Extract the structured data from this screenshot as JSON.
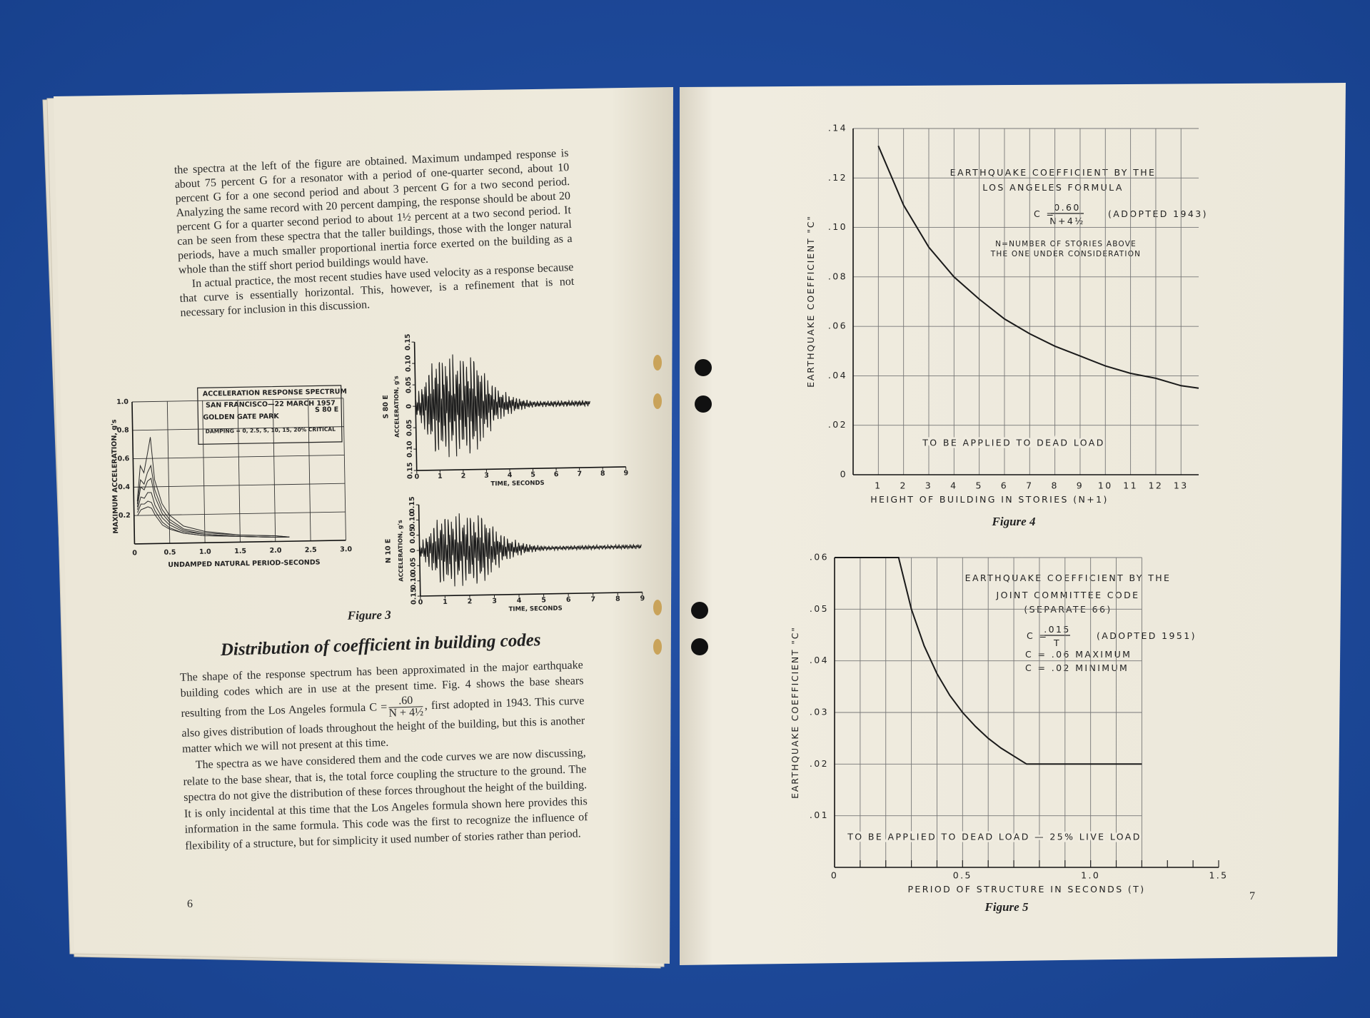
{
  "left_page": {
    "upper_text": [
      "the spectra at the left of the figure are obtained. Maximum undamped response is about 75 percent G for a resonator with a period of one-quarter second, about 10 percent G for a one second period and about 3 percent G for a two second period. Analyzing the same record with 20 percent damping, the response should be about 20 percent G for a quarter second period to about 1½ percent at a two second period. It can be seen from these spectra that the taller buildings, those with the longer natural periods, have a much smaller proportional inertia force exerted on the building as a whole than the stiff short period buildings would have.",
      "In actual practice, the most recent studies have used velocity as a response because that curve is essentially horizontal. This, however, is a refinement that is not necessary for inclusion in this discussion."
    ],
    "figure_3": {
      "spectrum": {
        "type": "line",
        "title_lines": [
          "ACCELERATION RESPONSE SPECTRUM",
          "SAN FRANCISCO—22 MARCH 1957",
          "GOLDEN GATE PARK"
        ],
        "direction": "S 80 E",
        "damping_note": "DAMPING = 0, 2.5, 5, 10, 15, 20% CRITICAL",
        "y_label": "MAXIMUM ACCELERATION, g's",
        "x_label": "UNDAMPED NATURAL PERIOD-SECONDS",
        "x": [
          0.05,
          0.1,
          0.15,
          0.2,
          0.25,
          0.3,
          0.4,
          0.5,
          0.7,
          1.0,
          1.5,
          2.0,
          2.2
        ],
        "series": [
          {
            "values": [
              0.3,
              0.55,
              0.5,
              0.62,
              0.75,
              0.45,
              0.28,
              0.2,
              0.12,
              0.08,
              0.05,
              0.04,
              0.03
            ]
          },
          {
            "values": [
              0.28,
              0.45,
              0.42,
              0.5,
              0.55,
              0.38,
              0.24,
              0.17,
              0.1,
              0.07,
              0.05,
              0.04,
              0.03
            ]
          },
          {
            "values": [
              0.26,
              0.4,
              0.38,
              0.44,
              0.46,
              0.33,
              0.21,
              0.15,
              0.09,
              0.06,
              0.04,
              0.03,
              0.03
            ]
          },
          {
            "values": [
              0.24,
              0.33,
              0.32,
              0.36,
              0.36,
              0.27,
              0.18,
              0.13,
              0.08,
              0.06,
              0.04,
              0.03,
              0.03
            ]
          },
          {
            "values": [
              0.22,
              0.28,
              0.28,
              0.3,
              0.29,
              0.23,
              0.15,
              0.11,
              0.07,
              0.05,
              0.04,
              0.03,
              0.03
            ]
          },
          {
            "values": [
              0.2,
              0.24,
              0.25,
              0.26,
              0.25,
              0.2,
              0.13,
              0.1,
              0.07,
              0.05,
              0.04,
              0.03,
              0.03
            ]
          }
        ],
        "xlim": [
          0,
          3
        ],
        "ylim": [
          0,
          1
        ],
        "xticks": [
          0,
          0.5,
          {
            "value": 1,
            "label": "1.0"
          },
          1.5,
          {
            "value": 2,
            "label": "2.0"
          },
          2.5,
          {
            "value": 3,
            "label": "3.0"
          }
        ],
        "yticks": [
          0.2,
          0.4,
          0.6,
          0.8,
          {
            "value": 1,
            "label": "1.0"
          }
        ],
        "grid": true,
        "color": "#2b2b2b"
      },
      "seismograms": [
        {
          "type": "line",
          "direction": "S 80 E",
          "y_label": "ACCELERATION, g's",
          "x_label": "TIME, SECONDS",
          "trace_end": 7.5,
          "xlim": [
            0,
            9
          ],
          "ylim": [
            -0.15,
            0.15
          ],
          "xticks": [
            0,
            1,
            2,
            3,
            4,
            5,
            6,
            7,
            8,
            9
          ],
          "yticks": [
            {
              "value": -0.15,
              "label": "0.15"
            },
            {
              "value": -0.1,
              "label": "0.10"
            },
            {
              "value": -0.05,
              "label": "0.05"
            },
            0,
            0.05,
            {
              "value": 0.1,
              "label": "0.10"
            },
            0.15
          ],
          "grid": false,
          "color": "#1e1e1e"
        },
        {
          "type": "line",
          "direction": "N 10 E",
          "y_label": "ACCELERATION, g's",
          "x_label": "TIME, SECONDS",
          "trace_end": 9,
          "xlim": [
            0,
            9
          ],
          "ylim": [
            -0.15,
            0.15
          ],
          "xticks": [
            0,
            1,
            2,
            3,
            4,
            5,
            6,
            7,
            8,
            9
          ],
          "yticks": [
            {
              "value": -0.15,
              "label": "0.15"
            },
            {
              "value": -0.1,
              "label": "0.10"
            },
            {
              "value": -0.05,
              "label": "0.05"
            },
            0,
            0.05,
            {
              "value": 0.1,
              "label": "0.10"
            },
            0.15
          ],
          "grid": false,
          "color": "#1e1e1e"
        }
      ],
      "caption": "Figure 3"
    },
    "heading": "Distribution of coefficient in building codes",
    "body": [
      {
        "before": "The shape of the response spectrum has been approximated in the major earthquake building codes which are in use at the present time. Fig. 4 shows the base shears resulting from the Los Angeles formula C =",
        "numerator": ".60",
        "denominator": "N + 4½",
        "after": ", first adopted in 1943. This curve also gives distribution of loads throughout the height of the building, but this is another matter which we will not present at this time."
      },
      "The spectra as we have considered them and the code curves we are now discussing, relate to the base shear, that is, the total force coupling the structure to the ground. The spectra do not give the distribution of these forces throughout the height of the building. It is only incidental at this time that the Los Angeles formula shown here provides this information in the same formula. This code was the first to recognize the influence of flexibility of a structure, but for simplicity it used number of stories rather than period."
    ],
    "page_number": "6"
  },
  "right_page": {
    "figure_4": {
      "type": "line",
      "title_lines": [
        "EARTHQUAKE COEFFICIENT BY THE",
        "LOS ANGELES FORMULA"
      ],
      "formula": {
        "lhs": "C =",
        "numerator": "0.60",
        "denominator": "N+4½",
        "note": "(ADOPTED 1943)"
      },
      "definition_lines": [
        "N=NUMBER OF STORIES ABOVE",
        "THE ONE UNDER CONSIDERATION"
      ],
      "annotation": "TO BE APPLIED TO DEAD LOAD",
      "y_label": "EARTHQUAKE COEFFICIENT \"C\"",
      "x_label": "HEIGHT OF BUILDING IN STORIES (N+1)",
      "caption": "Figure 4",
      "x": [
        1,
        2,
        3,
        4,
        5,
        6,
        7,
        8,
        9,
        10,
        11,
        12,
        13,
        13.7
      ],
      "values": [
        0.133,
        0.109,
        0.092,
        0.08,
        0.071,
        0.063,
        0.057,
        0.052,
        0.048,
        0.044,
        0.041,
        0.039,
        0.036,
        0.035
      ],
      "xlim": [
        0,
        13.7
      ],
      "ylim": [
        0,
        0.14
      ],
      "xticks": [
        1,
        2,
        3,
        4,
        5,
        6,
        7,
        8,
        9,
        10,
        11,
        12,
        13
      ],
      "yticks": [
        0,
        {
          "value": 0.02,
          "label": ".02"
        },
        {
          "value": 0.04,
          "label": ".04"
        },
        {
          "value": 0.06,
          "label": ".06"
        },
        {
          "value": 0.08,
          "label": ".08"
        },
        {
          "value": 0.1,
          "label": ".10"
        },
        {
          "value": 0.12,
          "label": ".12"
        },
        {
          "value": 0.14,
          "label": ".14"
        }
      ],
      "grid": true,
      "color": "#1a1a1a"
    },
    "figure_5": {
      "type": "line",
      "title_lines": [
        "EARTHQUAKE COEFFICIENT BY THE",
        "JOINT COMMITTEE CODE",
        "(SEPARATE 66)"
      ],
      "formula": {
        "lhs": "C =",
        "numerator": ".015",
        "denominator": "T",
        "note": "(ADOPTED 1951)"
      },
      "definition_lines": [
        "C = .06 MAXIMUM",
        "C = .02 MINIMUM"
      ],
      "annotation": "TO BE APPLIED TO DEAD LOAD — 25% LIVE LOAD",
      "y_label": "EARTHQUAKE COEFFICIENT \"C\"",
      "x_label": "PERIOD OF STRUCTURE IN SECONDS (T)",
      "caption": "Figure 5",
      "x": [
        0,
        0.25,
        0.3,
        0.35,
        0.4,
        0.45,
        0.5,
        0.55,
        0.6,
        0.65,
        0.75,
        1.2
      ],
      "values": [
        0.06,
        0.06,
        0.05,
        0.0429,
        0.0375,
        0.0333,
        0.03,
        0.0273,
        0.025,
        0.0231,
        0.02,
        0.02
      ],
      "xlim": [
        0,
        1.5
      ],
      "ylim": [
        0,
        0.06
      ],
      "xticks": [
        0,
        0.5,
        {
          "value": 1,
          "label": "1.0"
        },
        1.5
      ],
      "yticks": [
        {
          "value": 0.01,
          "label": ".01"
        },
        {
          "value": 0.02,
          "label": ".02"
        },
        {
          "value": 0.03,
          "label": ".03"
        },
        {
          "value": 0.04,
          "label": ".04"
        },
        {
          "value": 0.05,
          "label": ".05"
        },
        {
          "value": 0.06,
          "label": ".06"
        }
      ],
      "grid": true,
      "grid_step": 0.1,
      "color": "#1a1a1a"
    },
    "page_number": "7"
  }
}
